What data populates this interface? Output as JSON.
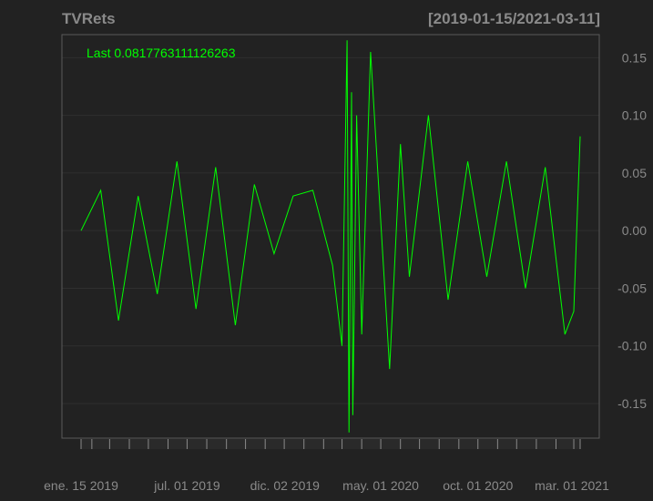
{
  "chart_data": {
    "type": "line",
    "title": "TVRets",
    "date_range_label": "[2019-01-15/2021-03-11]",
    "last_label": "Last 0.0817763111126263",
    "xlim": [
      "2019-01-15",
      "2021-03-11"
    ],
    "ylim": [
      -0.18,
      0.17
    ],
    "y_ticks": [
      {
        "value": 0.15,
        "label": "0.15"
      },
      {
        "value": 0.1,
        "label": "0.10"
      },
      {
        "value": 0.05,
        "label": "0.05"
      },
      {
        "value": 0.0,
        "label": "0.00"
      },
      {
        "value": -0.05,
        "label": "-0.05"
      },
      {
        "value": -0.1,
        "label": "-0.10"
      },
      {
        "value": -0.15,
        "label": "-0.15"
      }
    ],
    "x_tick_labels": [
      {
        "date": "2019-01-15",
        "label": "ene. 15 2019"
      },
      {
        "date": "2019-07-01",
        "label": "jul. 01 2019"
      },
      {
        "date": "2019-12-02",
        "label": "dic. 02 2019"
      },
      {
        "date": "2020-05-01",
        "label": "may. 01 2020"
      },
      {
        "date": "2020-10-01",
        "label": "oct. 01 2020"
      },
      {
        "date": "2021-03-01",
        "label": "mar. 01 2021"
      }
    ],
    "month_ticks": [
      "2019-02-01",
      "2019-03-01",
      "2019-04-01",
      "2019-05-01",
      "2019-06-01",
      "2019-07-01",
      "2019-08-01",
      "2019-09-01",
      "2019-10-01",
      "2019-11-01",
      "2019-12-01",
      "2020-01-01",
      "2020-02-01",
      "2020-03-01",
      "2020-04-01",
      "2020-05-01",
      "2020-06-01",
      "2020-07-01",
      "2020-08-01",
      "2020-09-01",
      "2020-10-01",
      "2020-11-01",
      "2020-12-01",
      "2021-01-01",
      "2021-02-01",
      "2021-03-01"
    ],
    "grid": true,
    "colors": {
      "background": "#222222",
      "series": "#00ff00",
      "grid": "#2f2f2f",
      "frame": "#5a5a5a",
      "text": "#8a8a8a"
    },
    "series": [
      {
        "x": [
          "2019-01-15",
          "2019-02-15",
          "2019-03-15",
          "2019-04-15",
          "2019-05-15",
          "2019-06-15",
          "2019-07-15",
          "2019-08-15",
          "2019-09-15",
          "2019-10-15",
          "2019-11-15",
          "2019-12-15",
          "2020-01-15",
          "2020-02-15",
          "2020-03-01",
          "2020-03-09",
          "2020-03-12",
          "2020-03-16",
          "2020-03-18",
          "2020-03-24",
          "2020-04-01",
          "2020-04-15",
          "2020-05-15",
          "2020-06-01",
          "2020-06-15",
          "2020-07-15",
          "2020-08-15",
          "2020-09-15",
          "2020-10-15",
          "2020-11-15",
          "2020-12-15",
          "2021-01-15",
          "2021-02-15",
          "2021-03-01",
          "2021-03-11"
        ],
        "values": [
          0.0,
          0.035,
          -0.078,
          0.03,
          -0.055,
          0.06,
          -0.068,
          0.055,
          -0.082,
          0.04,
          -0.02,
          0.03,
          0.035,
          -0.03,
          -0.1,
          0.165,
          -0.175,
          0.12,
          -0.16,
          0.1,
          -0.09,
          0.155,
          -0.12,
          0.075,
          -0.04,
          0.1,
          -0.06,
          0.06,
          -0.04,
          0.06,
          -0.05,
          0.055,
          -0.09,
          -0.07,
          0.0817763111126263
        ]
      }
    ]
  }
}
